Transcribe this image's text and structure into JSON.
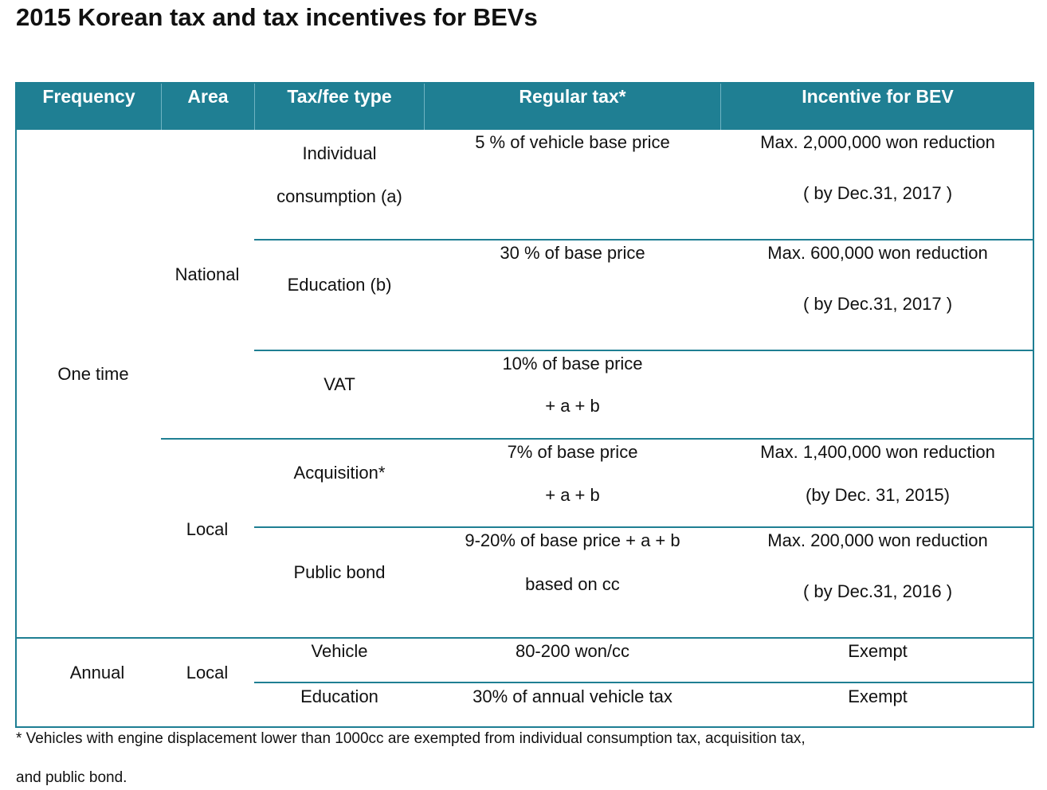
{
  "title": "2015 Korean tax and tax incentives for BEVs",
  "headers": {
    "frequency": "Frequency",
    "area": "Area",
    "tax_type": "Tax/fee type",
    "regular_tax": "Regular tax*",
    "incentive": "Incentive for BEV"
  },
  "groups": {
    "one_time": "One time",
    "annual": "Annual",
    "national": "National",
    "local_one_time": "Local",
    "local_annual": "Local"
  },
  "rows": {
    "individual": {
      "type_line1": "Individual",
      "type_line2": "consumption (a)",
      "regular": "5 % of vehicle base price",
      "incentive_line1": "Max. 2,000,000 won reduction",
      "incentive_line2": "( by Dec.31, 2017 )"
    },
    "education_b": {
      "type": "Education (b)",
      "regular": "30 % of base price",
      "incentive_line1": "Max. 600,000 won reduction",
      "incentive_line2": "( by Dec.31, 2017 )"
    },
    "vat": {
      "type": "VAT",
      "regular_line1": "10% of base price",
      "regular_line2": "+ a + b"
    },
    "acquisition": {
      "type": "Acquisition*",
      "regular_line1": "7% of base price",
      "regular_line2": "+ a + b",
      "incentive_line1": "Max. 1,400,000 won reduction",
      "incentive_line2": "(by Dec. 31, 2015)"
    },
    "public_bond": {
      "type": "Public bond",
      "regular_line1": "9-20% of base price + a + b",
      "regular_line2": "based on cc",
      "incentive_line1": "Max. 200,000 won reduction",
      "incentive_line2": "( by Dec.31, 2016 )"
    },
    "vehicle": {
      "type": "Vehicle",
      "regular": "80-200 won/cc",
      "incentive": "Exempt"
    },
    "education_annual": {
      "type": "Education",
      "regular": "30% of annual vehicle tax",
      "incentive": "Exempt"
    }
  },
  "footnote": {
    "line1": "* Vehicles with engine displacement lower than 1000cc are exempted from individual consumption tax, acquisition tax,",
    "line2": "and public bond."
  }
}
